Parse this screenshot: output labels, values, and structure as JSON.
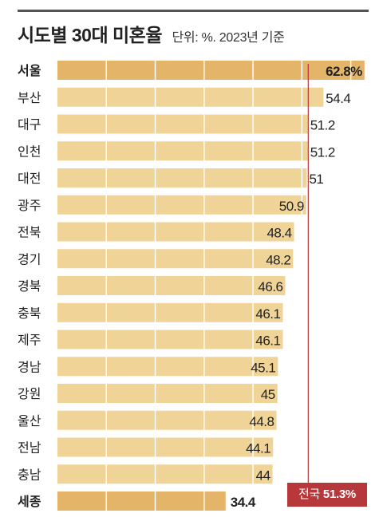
{
  "header": {
    "title": "시도별 30대 미혼율",
    "subtitle": "단위: %. 2023년 기준"
  },
  "national": {
    "label": "전국",
    "value_text": "51.3%"
  },
  "chart_data": {
    "type": "bar",
    "orientation": "horizontal",
    "title": "시도별 30대 미혼율",
    "subtitle": "단위: %. 2023년 기준",
    "categories": [
      "서울",
      "부산",
      "대구",
      "인천",
      "대전",
      "광주",
      "전북",
      "경기",
      "경북",
      "충북",
      "제주",
      "경남",
      "강원",
      "울산",
      "전남",
      "충남",
      "세종"
    ],
    "values": [
      62.8,
      54.4,
      51.2,
      51.2,
      51,
      50.9,
      48.4,
      48.2,
      46.6,
      46.1,
      46.1,
      45.1,
      45,
      44.8,
      44.1,
      44,
      34.4
    ],
    "value_labels": [
      "62.8%",
      "54.4",
      "51.2",
      "51.2",
      "51",
      "50.9",
      "48.4",
      "48.2",
      "46.6",
      "46.1",
      "46.1",
      "45.1",
      "45",
      "44.8",
      "44.1",
      "44",
      "34.4"
    ],
    "highlight": [
      "서울",
      "세종"
    ],
    "reference_line": {
      "label": "전국",
      "value": 51.3
    },
    "xlim": [
      0,
      63
    ],
    "grid": true,
    "colors": {
      "bar": "#f0d497",
      "bar_highlight": "#e4b468",
      "grid": "#ffffff",
      "reference_line": "#b7383a",
      "text": "#222222"
    }
  }
}
